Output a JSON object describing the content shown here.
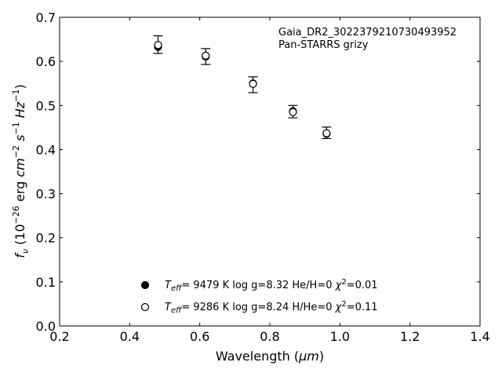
{
  "chart_data": {
    "type": "scatter",
    "xlabel_prefix": "Wavelength (",
    "xlabel_unit": "μm",
    "xlabel_suffix": ")",
    "ylabel": "f_ν (10^-26 erg cm^-2 s^-1 Hz^-1)",
    "xlim": [
      0.2,
      1.4
    ],
    "ylim": [
      0.0,
      0.7
    ],
    "x_ticks": [
      0.2,
      0.4,
      0.6,
      0.8,
      1.0,
      1.2,
      1.4
    ],
    "y_ticks": [
      0.0,
      0.1,
      0.2,
      0.3,
      0.4,
      0.5,
      0.6,
      0.7
    ],
    "x_tick_labels": [
      "0.2",
      "0.4",
      "0.6",
      "0.8",
      "1.0",
      "1.2",
      "1.4"
    ],
    "y_tick_labels": [
      "0.0",
      "0.1",
      "0.2",
      "0.3",
      "0.4",
      "0.5",
      "0.6",
      "0.7"
    ],
    "grid": false,
    "annotations": [
      "Gaia_DR2_3022379210730493952",
      "Pan-STARRS grizy"
    ],
    "observed": {
      "x": [
        0.481,
        0.617,
        0.752,
        0.866,
        0.962
      ],
      "y": [
        0.638,
        0.611,
        0.547,
        0.486,
        0.438
      ],
      "yerr": [
        0.02,
        0.018,
        0.018,
        0.014,
        0.013
      ]
    },
    "series": [
      {
        "name": "T_eff= 9479 K log g=8.32 He/H=0 χ²=0.01",
        "marker": "filled-circle",
        "Teff": "9479 K",
        "logg": "log g=8.32",
        "comp": "He/H=0",
        "chi2": "0.01",
        "x": [
          0.481,
          0.617,
          0.752,
          0.866,
          0.962
        ],
        "y": [
          0.633,
          0.611,
          0.55,
          0.487,
          0.436
        ]
      },
      {
        "name": "T_eff= 9286 K log g=8.24 H/He=0 χ²=0.11",
        "marker": "open-circle",
        "Teff": "9286 K",
        "logg": "log g=8.24",
        "comp": "H/He=0",
        "chi2": "0.11",
        "x": [
          0.481,
          0.617,
          0.752,
          0.866,
          0.962
        ],
        "y": [
          0.637,
          0.613,
          0.549,
          0.485,
          0.437
        ]
      }
    ],
    "colors": {
      "marker": "#000000",
      "axes": "#000000",
      "background": "#ffffff"
    }
  }
}
